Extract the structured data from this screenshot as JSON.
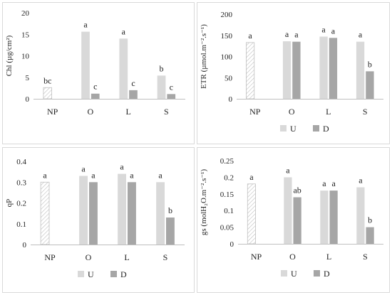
{
  "chart_data": [
    {
      "type": "bar",
      "ylabel": "Chl (µg/cm²)",
      "categories": [
        "NP",
        "O",
        "L",
        "S"
      ],
      "ylim": [
        0,
        20
      ],
      "yticks": [
        0,
        5,
        10,
        15,
        20
      ],
      "series": [
        {
          "name": "U",
          "values": [
            2.6,
            15.6,
            14.0,
            5.4
          ],
          "labels": [
            "bc",
            "a",
            "a",
            "b"
          ]
        },
        {
          "name": "D",
          "values": [
            null,
            1.2,
            2.0,
            1.1
          ],
          "labels": [
            "",
            "c",
            "c",
            "c"
          ]
        }
      ],
      "legend": "none"
    },
    {
      "type": "bar",
      "ylabel": "ETR (µmol.m⁻².s⁻¹)",
      "categories": [
        "NP",
        "O",
        "L",
        "S"
      ],
      "ylim": [
        0,
        200
      ],
      "yticks": [
        0,
        50,
        100,
        150,
        200
      ],
      "series": [
        {
          "name": "U",
          "values": [
            133,
            136,
            147,
            135
          ],
          "labels": [
            "a",
            "a",
            "a",
            "a"
          ]
        },
        {
          "name": "D",
          "values": [
            null,
            135,
            144,
            65
          ],
          "labels": [
            "",
            "a",
            "a",
            "b"
          ]
        }
      ],
      "legend": "bottom"
    },
    {
      "type": "bar",
      "ylabel": "qP",
      "categories": [
        "NP",
        "O",
        "L",
        "S"
      ],
      "ylim": [
        0,
        0.4
      ],
      "yticks": [
        0,
        0.1,
        0.2,
        0.3,
        0.4
      ],
      "series": [
        {
          "name": "U",
          "values": [
            0.3,
            0.33,
            0.34,
            0.3
          ],
          "labels": [
            "a",
            "a",
            "a",
            "a"
          ]
        },
        {
          "name": "D",
          "values": [
            null,
            0.3,
            0.3,
            0.13
          ],
          "labels": [
            "",
            "a",
            "a",
            "b"
          ]
        }
      ],
      "legend": "bottom"
    },
    {
      "type": "bar",
      "ylabel": "gs (molH₂O.m⁻².s⁻¹)",
      "categories": [
        "NP",
        "O",
        "L",
        "S"
      ],
      "ylim": [
        0,
        0.25
      ],
      "yticks": [
        0,
        0.05,
        0.1,
        0.15,
        0.2,
        0.25
      ],
      "series": [
        {
          "name": "U",
          "values": [
            0.18,
            0.2,
            0.16,
            0.17
          ],
          "labels": [
            "a",
            "a",
            "a",
            "a"
          ]
        },
        {
          "name": "D",
          "values": [
            null,
            0.14,
            0.16,
            0.05
          ],
          "labels": [
            "",
            "ab",
            "a",
            "b"
          ]
        }
      ],
      "legend": "bottom"
    }
  ],
  "colors": {
    "u_bar": "#d9d9d9",
    "d_bar": "#a6a6a6",
    "np_hatch": "#bfbfbf",
    "panel_border": "#d9d9d9",
    "axis": "#bfbfbf"
  }
}
